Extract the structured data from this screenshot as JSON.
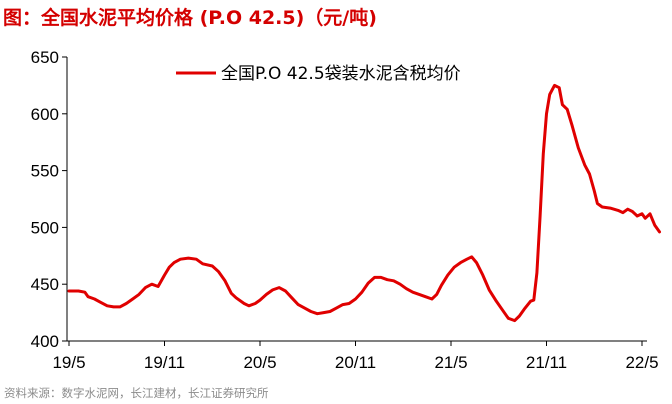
{
  "figure": {
    "title": "图：全国水泥平均价格 (P.O 42.5)（元/吨)",
    "source": "资料来源：数字水泥网，长江建材，长江证券研究所"
  },
  "chart_data": {
    "type": "line",
    "ylim": [
      400,
      650
    ],
    "yticks": [
      400,
      450,
      500,
      550,
      600,
      650
    ],
    "xlim": [
      0,
      37.5
    ],
    "xticks": [
      {
        "label": "19/5",
        "x": 0
      },
      {
        "label": "19/11",
        "x": 6
      },
      {
        "label": "20/5",
        "x": 12
      },
      {
        "label": "20/11",
        "x": 18
      },
      {
        "label": "21/5",
        "x": 24
      },
      {
        "label": "21/11",
        "x": 30
      },
      {
        "label": "22/5",
        "x": 36
      }
    ],
    "grid": false,
    "legend_position": "top-center",
    "series": [
      {
        "name": "全国P.O 42.5袋装水泥含税均价",
        "color": "#e00000",
        "points": [
          [
            0,
            444
          ],
          [
            0.6,
            444
          ],
          [
            1.0,
            443
          ],
          [
            1.2,
            439
          ],
          [
            1.6,
            437
          ],
          [
            2.0,
            434
          ],
          [
            2.4,
            431
          ],
          [
            2.8,
            430
          ],
          [
            3.2,
            430
          ],
          [
            3.6,
            433
          ],
          [
            4.0,
            437
          ],
          [
            4.4,
            441
          ],
          [
            4.8,
            447
          ],
          [
            5.2,
            450
          ],
          [
            5.6,
            448
          ],
          [
            6.0,
            458
          ],
          [
            6.3,
            465
          ],
          [
            6.6,
            469
          ],
          [
            7.0,
            472
          ],
          [
            7.5,
            473
          ],
          [
            8.0,
            472
          ],
          [
            8.4,
            468
          ],
          [
            9.0,
            466
          ],
          [
            9.4,
            461
          ],
          [
            9.8,
            453
          ],
          [
            10.2,
            442
          ],
          [
            10.5,
            438
          ],
          [
            11.0,
            433
          ],
          [
            11.3,
            431
          ],
          [
            11.7,
            433
          ],
          [
            12.0,
            436
          ],
          [
            12.4,
            441
          ],
          [
            12.8,
            445
          ],
          [
            13.2,
            447
          ],
          [
            13.6,
            444
          ],
          [
            14.0,
            438
          ],
          [
            14.4,
            432
          ],
          [
            14.8,
            429
          ],
          [
            15.2,
            426
          ],
          [
            15.6,
            424
          ],
          [
            16.0,
            425
          ],
          [
            16.4,
            426
          ],
          [
            16.8,
            429
          ],
          [
            17.2,
            432
          ],
          [
            17.6,
            433
          ],
          [
            18.0,
            437
          ],
          [
            18.4,
            443
          ],
          [
            18.8,
            451
          ],
          [
            19.2,
            456
          ],
          [
            19.6,
            456
          ],
          [
            20.0,
            454
          ],
          [
            20.4,
            453
          ],
          [
            20.8,
            450
          ],
          [
            21.2,
            446
          ],
          [
            21.6,
            443
          ],
          [
            22.0,
            441
          ],
          [
            22.4,
            439
          ],
          [
            22.8,
            437
          ],
          [
            23.1,
            441
          ],
          [
            23.4,
            449
          ],
          [
            23.8,
            458
          ],
          [
            24.2,
            465
          ],
          [
            24.6,
            469
          ],
          [
            25.0,
            472
          ],
          [
            25.3,
            474
          ],
          [
            25.6,
            469
          ],
          [
            26.0,
            458
          ],
          [
            26.4,
            445
          ],
          [
            26.8,
            436
          ],
          [
            27.2,
            428
          ],
          [
            27.6,
            420
          ],
          [
            28.0,
            418
          ],
          [
            28.3,
            422
          ],
          [
            28.6,
            428
          ],
          [
            29.0,
            435
          ],
          [
            29.2,
            436
          ],
          [
            29.4,
            460
          ],
          [
            29.6,
            510
          ],
          [
            29.8,
            565
          ],
          [
            30.0,
            600
          ],
          [
            30.2,
            617
          ],
          [
            30.5,
            625
          ],
          [
            30.8,
            623
          ],
          [
            31.0,
            608
          ],
          [
            31.3,
            604
          ],
          [
            31.6,
            590
          ],
          [
            32.0,
            570
          ],
          [
            32.4,
            555
          ],
          [
            32.7,
            547
          ],
          [
            33.0,
            532
          ],
          [
            33.2,
            521
          ],
          [
            33.5,
            518
          ],
          [
            34.0,
            517
          ],
          [
            34.5,
            515
          ],
          [
            34.8,
            513
          ],
          [
            35.1,
            516
          ],
          [
            35.4,
            514
          ],
          [
            35.7,
            510
          ],
          [
            36.0,
            512
          ],
          [
            36.2,
            508
          ],
          [
            36.5,
            512
          ],
          [
            36.8,
            502
          ],
          [
            37.1,
            496
          ]
        ]
      }
    ]
  }
}
